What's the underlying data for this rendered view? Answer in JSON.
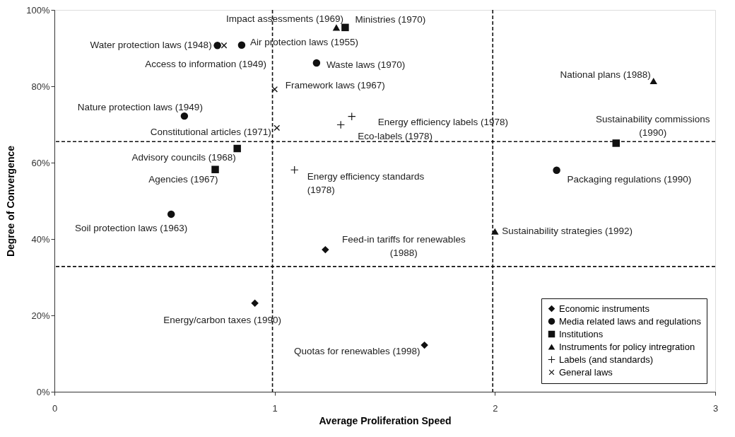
{
  "chart_data": {
    "type": "scatter",
    "xlabel": "Average Proliferation Speed",
    "ylabel": "Degree of Convergence",
    "xlim": [
      0,
      3
    ],
    "ylim": [
      0,
      100
    ],
    "xticks": [
      0,
      1,
      2,
      3
    ],
    "yticks": [
      {
        "value": 0,
        "label": "0%"
      },
      {
        "value": 20,
        "label": "20%"
      },
      {
        "value": 40,
        "label": "40%"
      },
      {
        "value": 60,
        "label": "60%"
      },
      {
        "value": 80,
        "label": "80%"
      },
      {
        "value": 100,
        "label": "100%"
      }
    ],
    "grid": false,
    "legend": "bottom right",
    "series": [
      {
        "name": "Economic instruments",
        "color": "#111111",
        "marker": "diamond",
        "x": [
          1.23,
          0.91,
          1.68
        ],
        "values": [
          37.2,
          23.2,
          12.2
        ]
      },
      {
        "name": "Media related laws and regulations",
        "color": "#111111",
        "marker": "circle",
        "x": [
          0.74,
          0.85,
          1.19,
          0.59,
          0.53,
          2.28
        ],
        "values": [
          90.7,
          90.8,
          86.1,
          72.2,
          46.5,
          58.0
        ]
      },
      {
        "name": "Institutions",
        "color": "#111111",
        "marker": "square",
        "x": [
          1.32,
          0.83,
          0.73,
          2.55
        ],
        "values": [
          95.4,
          63.7,
          58.2,
          65.1
        ]
      },
      {
        "name": "Instruments for policy intregration",
        "color": "#111111",
        "marker": "triangle",
        "x": [
          1.28,
          2.72,
          2.0
        ],
        "values": [
          95.4,
          81.4,
          42.0
        ]
      },
      {
        "name": "Labels (and standards)",
        "color": "#111111",
        "marker": "plus",
        "x": [
          1.3,
          1.35,
          1.09
        ],
        "values": [
          69.9,
          72.1,
          58.1
        ]
      },
      {
        "name": "General laws",
        "color": "#111111",
        "marker": "cross",
        "x": [
          0.77,
          1.0,
          1.01
        ],
        "values": [
          90.7,
          79.2,
          69.1
        ]
      }
    ],
    "ref_lines": [
      {
        "axis": "x",
        "value": 0.99,
        "line_style": "dashed",
        "color": "#111111"
      },
      {
        "axis": "x",
        "value": 1.99,
        "line_style": "dashed",
        "color": "#111111"
      },
      {
        "axis": "y",
        "value": 65.5,
        "line_style": "dashed",
        "color": "#111111"
      },
      {
        "axis": "y",
        "value": 32.8,
        "line_style": "dashed",
        "color": "#111111"
      }
    ],
    "annotations": [
      {
        "text": "Water protection laws (1948)",
        "x": 0.74,
        "y": 90.7
      },
      {
        "text": "Access to information (1949)",
        "x": 0.77,
        "y": 90.7
      },
      {
        "text": "Air protection laws (1955)",
        "x": 0.85,
        "y": 90.8
      },
      {
        "text": "Impact assessments (1969)",
        "x": 1.28,
        "y": 95.4
      },
      {
        "text": "Ministries (1970)",
        "x": 1.32,
        "y": 95.4
      },
      {
        "text": "Waste laws (1970)",
        "x": 1.19,
        "y": 86.1
      },
      {
        "text": "Framework laws (1967)",
        "x": 1.0,
        "y": 79.2
      },
      {
        "text": "Nature protection laws (1949)",
        "x": 0.59,
        "y": 72.2
      },
      {
        "text": "Constitutional articles (1971)",
        "x": 1.01,
        "y": 69.1
      },
      {
        "text": "Eco-labels (1978)",
        "x": 1.3,
        "y": 69.9
      },
      {
        "text": "Energy efficiency labels (1978)",
        "x": 1.35,
        "y": 72.1
      },
      {
        "text": "Advisory councils (1968)",
        "x": 0.83,
        "y": 63.7
      },
      {
        "text": "Agencies (1967)",
        "x": 0.73,
        "y": 58.2
      },
      {
        "text": "Energy efficiency standards\n(1978)",
        "x": 1.09,
        "y": 58.1
      },
      {
        "text": "Soil protection laws (1963)",
        "x": 0.53,
        "y": 46.5
      },
      {
        "text": "National plans (1988)",
        "x": 2.72,
        "y": 81.4
      },
      {
        "text": "Sustainability commissions\n(1990)",
        "x": 2.55,
        "y": 65.1
      },
      {
        "text": "Packaging regulations (1990)",
        "x": 2.28,
        "y": 58.0
      },
      {
        "text": "Sustainability strategies (1992)",
        "x": 2.0,
        "y": 42.0
      },
      {
        "text": "Feed-in tariffs for renewables\n(1988)",
        "x": 1.23,
        "y": 37.2
      },
      {
        "text": "Energy/carbon taxes (1990)",
        "x": 0.91,
        "y": 23.2
      },
      {
        "text": "Quotas for renewables (1998)",
        "x": 1.68,
        "y": 12.2
      }
    ]
  }
}
